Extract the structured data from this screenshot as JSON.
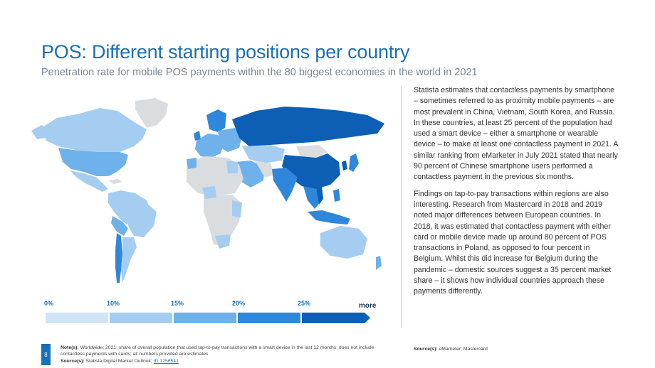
{
  "header": {
    "title": "POS: Different starting positions per country",
    "subtitle": "Penetration rate for mobile POS payments within the 80 biggest economies in the world in 2021"
  },
  "colors": {
    "accent": "#1a6fb7",
    "no_data": "#dadde0",
    "tier_0": "#cfe4f7",
    "tier_10": "#a5cdf1",
    "tier_15": "#6fb1ea",
    "tier_20": "#2f87dc",
    "tier_25": "#0d5fb5"
  },
  "legend": {
    "labels": [
      "0%",
      "10%",
      "15%",
      "20%",
      "25%"
    ],
    "more": "more"
  },
  "body": {
    "paragraph_1": "Statista estimates that contactless payments by smartphone – sometimes referred to as proximity mobile payments – are most prevalent in China, Vietnam, South Korea, and Russia. In these countries, at least 25 percent of the population had used a smart device – either a smartphone or wearable device – to make at least one contactless payment in 2021. A similar ranking from eMarketer in July 2021 stated that nearly 90 percent of Chinese smartphone users performed a contactless payment in the previous six months.",
    "paragraph_2": "Findings on tap-to-pay transactions within regions are also interesting. Research from Mastercard in 2018 and 2019 noted major differences between European countries. In 2018, it was estimated that contactless payment with either card or mobile device made up around 80 percent of POS transactions in Poland, as opposed to four percent in Belgium. Whilst this did increase for Belgium during the pandemic – domestic sources suggest a 35 percent market share – it shows how individual countries approach these payments differently."
  },
  "footer": {
    "page_number": "8",
    "notes_label": "Note(s):",
    "notes_text": "Worldwide; 2021; share of overall population that used tap-to-pay transactions with a smart device in the last 12 months; does not include contactless payments with cards; all numbers provided are estimates",
    "sources_label": "Source(s):",
    "sources_text": "Statista Digital Market Outlook;",
    "sources_link": "ID 1256541",
    "right_sources_label": "Source(s):",
    "right_sources_text": "eMarketer; Mastercard"
  }
}
